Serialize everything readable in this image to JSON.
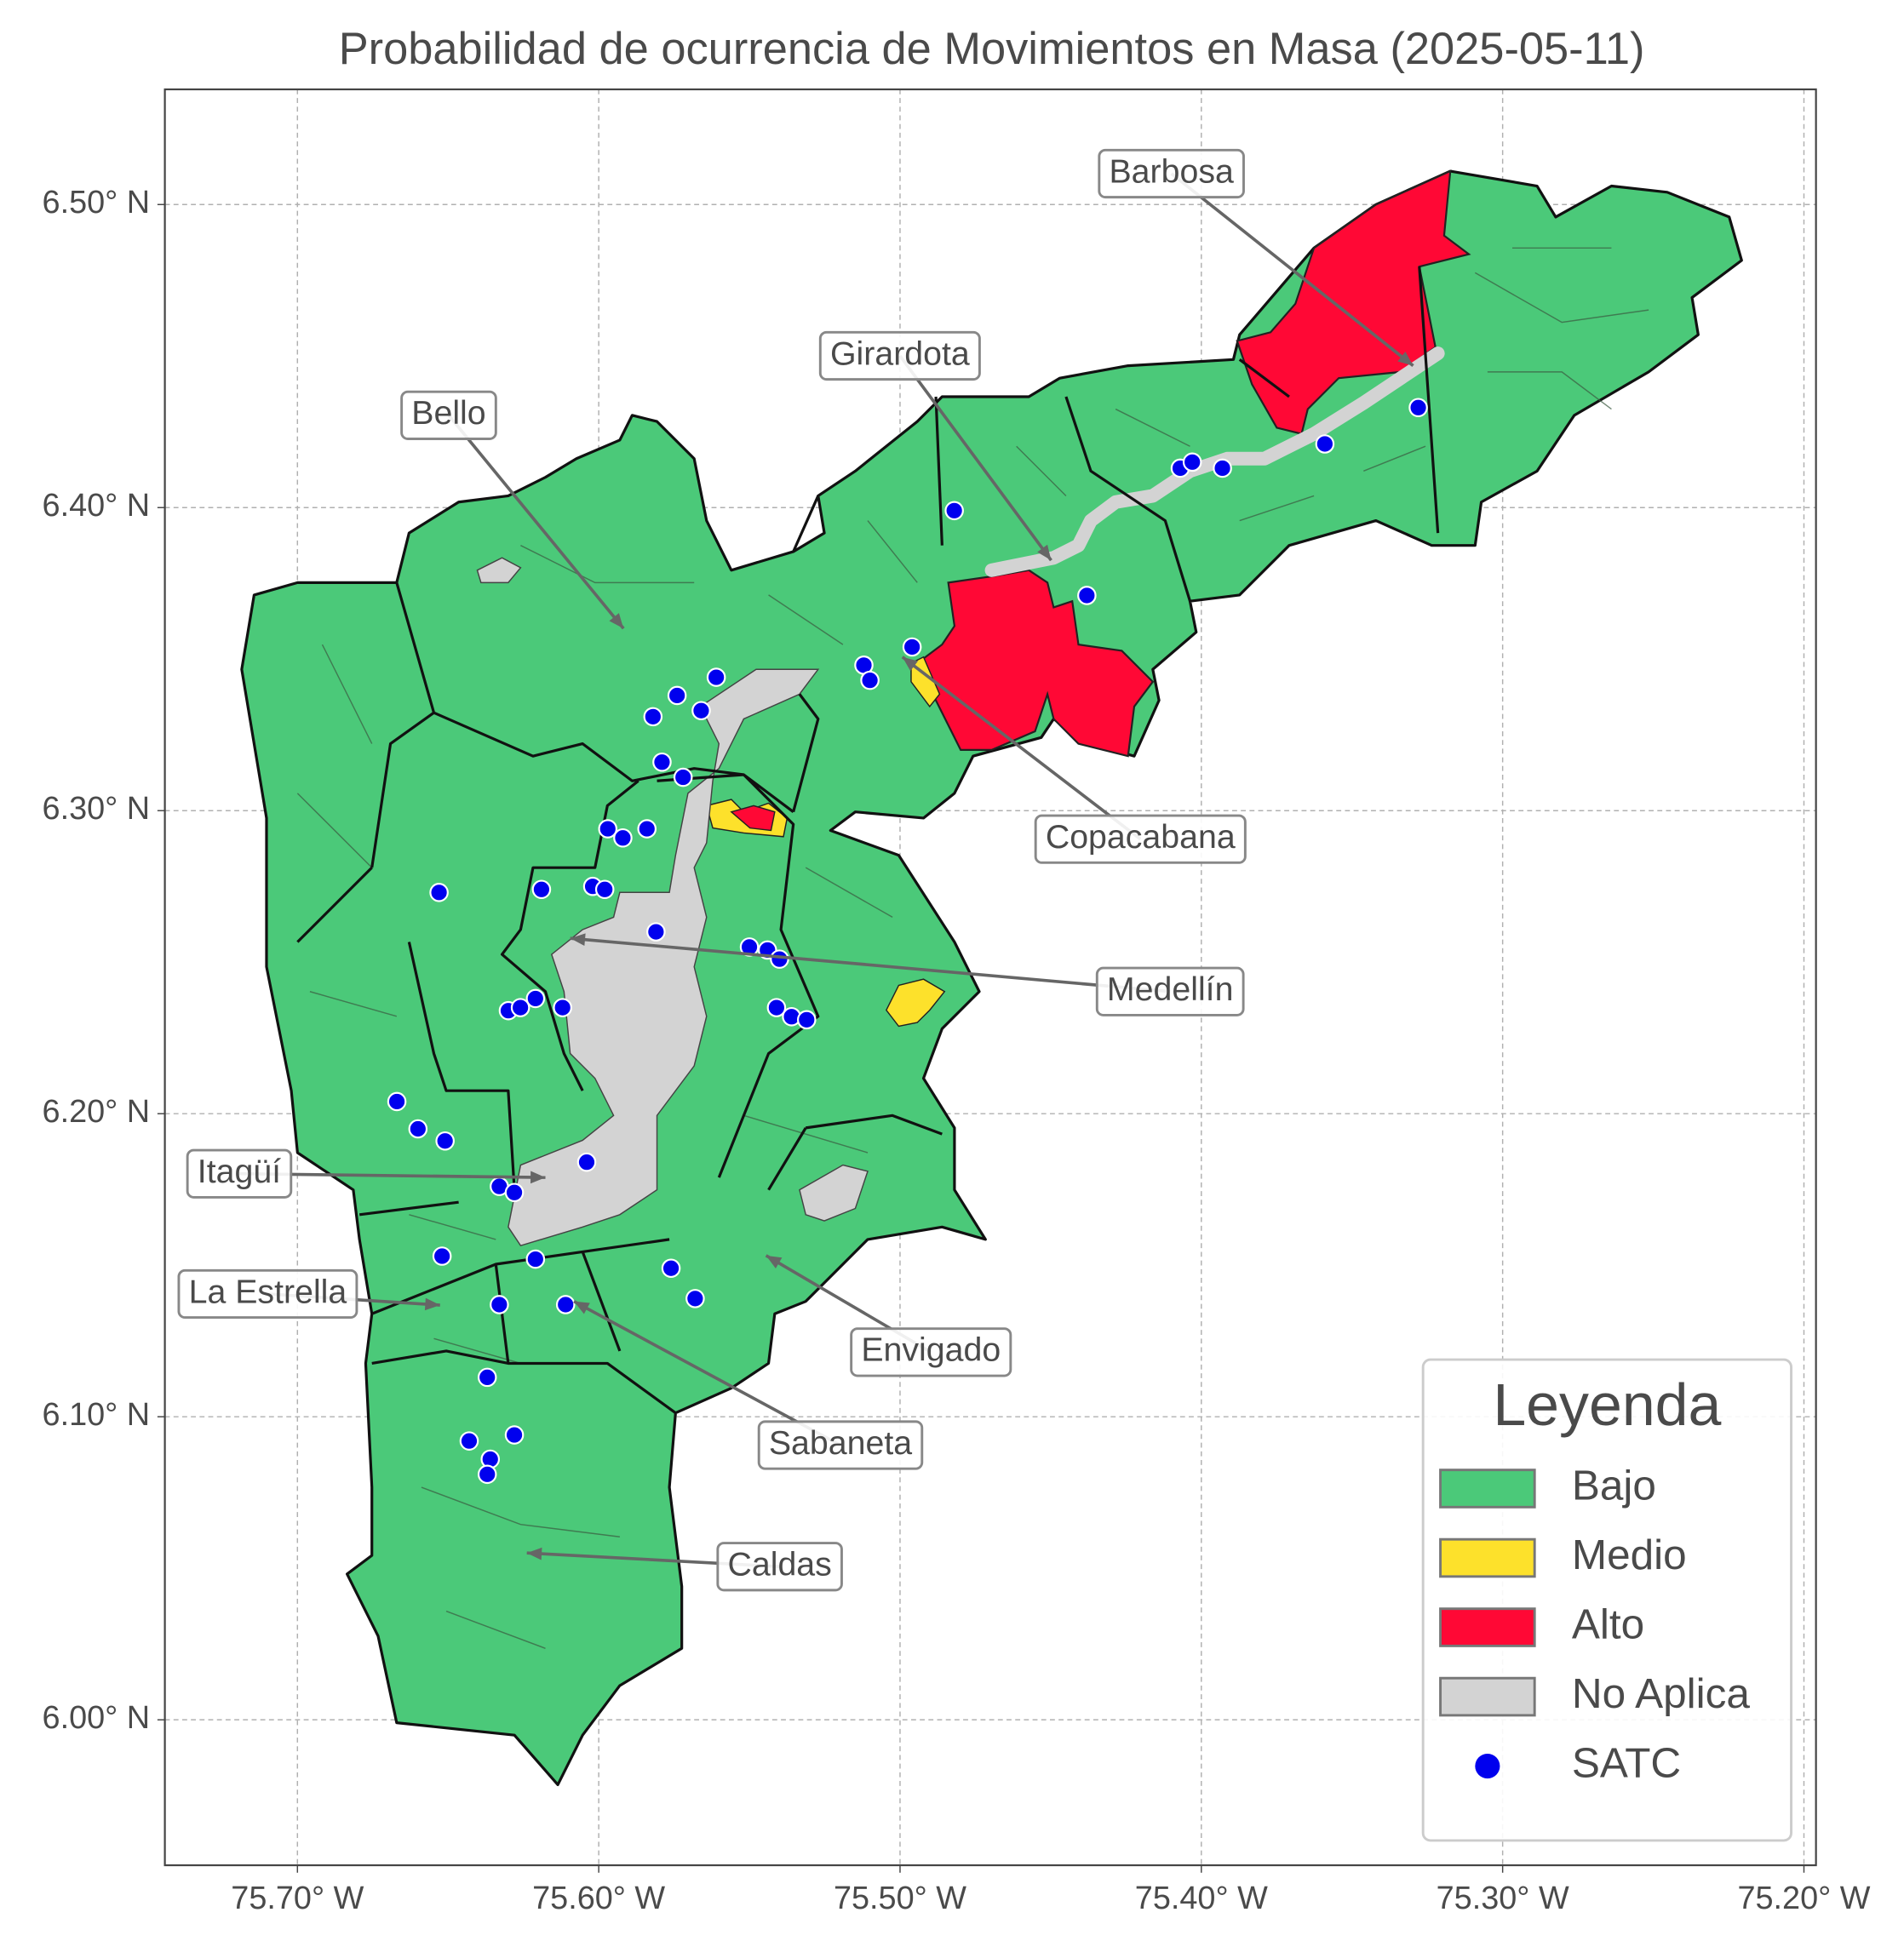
{
  "chart_data": {
    "type": "map",
    "title": "Probabilidad de ocurrencia de Movimientos en Masa (2025-05-11)",
    "xlim": [
      -75.744,
      -75.196
    ],
    "ylim": [
      5.952,
      6.538
    ],
    "xticks": [
      {
        "value": -75.7,
        "label": "75.70° W"
      },
      {
        "value": -75.6,
        "label": "75.60° W"
      },
      {
        "value": -75.5,
        "label": "75.50° W"
      },
      {
        "value": -75.4,
        "label": "75.40° W"
      },
      {
        "value": -75.3,
        "label": "75.30° W"
      },
      {
        "value": -75.2,
        "label": "75.20° W"
      }
    ],
    "yticks": [
      {
        "value": 6.0,
        "label": "6.00° N"
      },
      {
        "value": 6.1,
        "label": "6.10° N"
      },
      {
        "value": 6.2,
        "label": "6.20° N"
      },
      {
        "value": 6.3,
        "label": "6.30° N"
      },
      {
        "value": 6.4,
        "label": "6.40° N"
      },
      {
        "value": 6.5,
        "label": "6.50° N"
      }
    ],
    "grid": true,
    "annotations": [
      "Barbosa",
      "Girardota",
      "Bello",
      "Copacabana",
      "Medellín",
      "Itagüí",
      "La Estrella",
      "Envigado",
      "Sabaneta",
      "Caldas"
    ],
    "legend": {
      "title": "Leyenda",
      "position": "lower right",
      "classes": [
        {
          "name": "Bajo",
          "color": "#4bc979"
        },
        {
          "name": "Medio",
          "color": "#fde12b"
        },
        {
          "name": "Alto",
          "color": "#ff0835"
        },
        {
          "name": "No Aplica",
          "color": "#d3d3d3"
        }
      ]
    },
    "series": [
      {
        "name": "SATC",
        "color": "#0000ee",
        "x": [
          -75.328,
          -75.359,
          -75.407,
          -75.403,
          -75.393,
          -75.482,
          -75.438,
          -75.496,
          -75.512,
          -75.51,
          -75.561,
          -75.574,
          -75.582,
          -75.566,
          -75.579,
          -75.572,
          -75.597,
          -75.592,
          -75.584,
          -75.653,
          -75.619,
          -75.602,
          -75.598,
          -75.581,
          -75.55,
          -75.544,
          -75.54,
          -75.621,
          -75.63,
          -75.626,
          -75.612,
          -75.541,
          -75.536,
          -75.531,
          -75.667,
          -75.66,
          -75.651,
          -75.604,
          -75.633,
          -75.628,
          -75.652,
          -75.621,
          -75.576,
          -75.568,
          -75.633,
          -75.611,
          -75.637,
          -75.643,
          -75.628,
          -75.636,
          -75.637
        ],
        "y": [
          6.433,
          6.421,
          6.413,
          6.415,
          6.413,
          6.399,
          6.371,
          6.354,
          6.348,
          6.343,
          6.344,
          6.338,
          6.331,
          6.333,
          6.316,
          6.311,
          6.294,
          6.291,
          6.294,
          6.273,
          6.274,
          6.275,
          6.274,
          6.26,
          6.255,
          6.254,
          6.251,
          6.238,
          6.234,
          6.235,
          6.235,
          6.235,
          6.232,
          6.231,
          6.204,
          6.195,
          6.191,
          6.184,
          6.176,
          6.174,
          6.153,
          6.152,
          6.149,
          6.139,
          6.137,
          6.137,
          6.113,
          6.092,
          6.094,
          6.086,
          6.081
        ]
      }
    ]
  }
}
